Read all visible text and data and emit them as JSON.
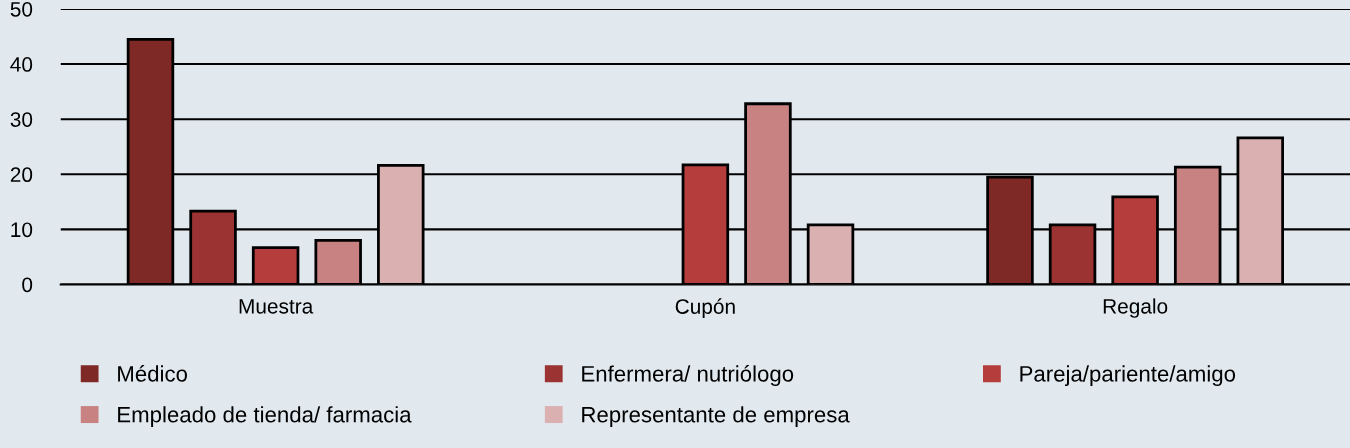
{
  "chart_data": {
    "type": "bar",
    "categories": [
      "Muestra",
      "Cupón",
      "Regalo"
    ],
    "series": [
      {
        "name": "Médico",
        "color": "#7f2927",
        "values": [
          44.5,
          null,
          19.5
        ]
      },
      {
        "name": "Enfermera/ nutriólogo",
        "color": "#9a3331",
        "values": [
          13.3,
          null,
          10.8
        ]
      },
      {
        "name": "Pareja/pariente/amigo",
        "color": "#b53e3c",
        "values": [
          6.7,
          21.7,
          15.9
        ]
      },
      {
        "name": "Empleado de tienda/ farmacia",
        "color": "#c98282",
        "values": [
          8.0,
          32.8,
          21.3
        ]
      },
      {
        "name": "Representante de empresa",
        "color": "#dbb0b1",
        "values": [
          21.6,
          10.8,
          26.6
        ]
      }
    ],
    "ylim": [
      0,
      50
    ],
    "yticks": [
      0,
      10,
      20,
      30,
      40,
      50
    ],
    "grid": "y",
    "legend": "bottom"
  }
}
